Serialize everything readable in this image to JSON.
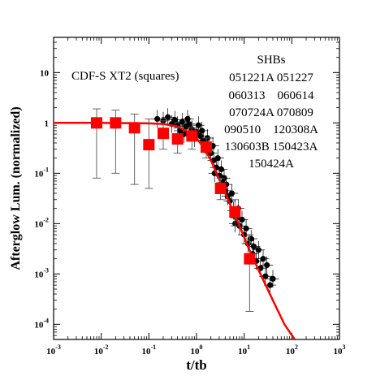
{
  "chart_data": {
    "type": "scatter",
    "scale": {
      "x": "log",
      "y": "log"
    },
    "xlim": [
      0.001,
      1000
    ],
    "ylim": [
      5e-05,
      50
    ],
    "xlabel": "t/tb",
    "ylabel": "Afterglow Lum. (normalized)",
    "x_ticks": [
      {
        "value": 0.001,
        "base": "10",
        "exp": "-3"
      },
      {
        "value": 0.01,
        "base": "10",
        "exp": "-2"
      },
      {
        "value": 0.1,
        "base": "10",
        "exp": "-1"
      },
      {
        "value": 1,
        "base": "10",
        "exp": "0"
      },
      {
        "value": 10,
        "base": "10",
        "exp": "1"
      },
      {
        "value": 100,
        "base": "10",
        "exp": "2"
      },
      {
        "value": 1000,
        "base": "10",
        "exp": "3"
      }
    ],
    "y_ticks": [
      {
        "value": 0.0001,
        "base": "10",
        "exp": "-4"
      },
      {
        "value": 0.001,
        "base": "10",
        "exp": "-3"
      },
      {
        "value": 0.01,
        "base": "10",
        "exp": "-2"
      },
      {
        "value": 0.1,
        "base": "10",
        "exp": "-1"
      },
      {
        "value": 1,
        "label": "1"
      },
      {
        "value": 10,
        "label": "10"
      }
    ],
    "annotations": {
      "xt2_label": "CDF-S XT2 (squares)",
      "shb_title": "SHBs",
      "shb_lines": [
        "051221A 051227",
        "060313    060614",
        "070724A 070809",
        "090510    120308A",
        "130603B 150423A",
        "150424A"
      ]
    },
    "series": [
      {
        "name": "CDF-S XT2 (squares)",
        "marker": "square",
        "color": "#ff0000",
        "points": [
          {
            "x": 0.008,
            "y": 1.0,
            "ylo": 0.08,
            "yhi": 1.9
          },
          {
            "x": 0.02,
            "y": 1.0,
            "ylo": 0.1,
            "yhi": 1.8
          },
          {
            "x": 0.05,
            "y": 0.8,
            "ylo": 0.06,
            "yhi": 1.5
          },
          {
            "x": 0.1,
            "y": 0.37,
            "ylo": 0.05,
            "yhi": 1.2
          },
          {
            "x": 0.2,
            "y": 0.62,
            "ylo": 0.3,
            "yhi": 1.1
          },
          {
            "x": 0.4,
            "y": 0.48,
            "ylo": 0.25,
            "yhi": 0.8
          },
          {
            "x": 0.8,
            "y": 0.55,
            "ylo": 0.3,
            "yhi": 0.8
          },
          {
            "x": 1.6,
            "y": 0.33,
            "ylo": 0.2,
            "yhi": 0.5
          },
          {
            "x": 3.2,
            "y": 0.05,
            "ylo": 0.03,
            "yhi": 0.08
          },
          {
            "x": 6.4,
            "y": 0.017,
            "ylo": 0.009,
            "yhi": 0.03
          },
          {
            "x": 13,
            "y": 0.002,
            "ylo": 0.00018,
            "yhi": 0.006
          }
        ]
      },
      {
        "name": "SHBs",
        "marker": "circle",
        "color": "#000000",
        "points": [
          {
            "x": 0.15,
            "y": 1.2
          },
          {
            "x": 0.2,
            "y": 1.1
          },
          {
            "x": 0.25,
            "y": 1.3
          },
          {
            "x": 0.3,
            "y": 0.95
          },
          {
            "x": 0.35,
            "y": 1.15
          },
          {
            "x": 0.4,
            "y": 0.9
          },
          {
            "x": 0.5,
            "y": 1.05
          },
          {
            "x": 0.6,
            "y": 0.85
          },
          {
            "x": 0.7,
            "y": 0.95
          },
          {
            "x": 0.8,
            "y": 0.75
          },
          {
            "x": 1.0,
            "y": 0.65
          },
          {
            "x": 1.2,
            "y": 0.55
          },
          {
            "x": 1.4,
            "y": 0.45
          },
          {
            "x": 1.6,
            "y": 0.38
          },
          {
            "x": 1.8,
            "y": 0.3
          },
          {
            "x": 2.0,
            "y": 0.25
          },
          {
            "x": 2.3,
            "y": 0.18
          },
          {
            "x": 2.6,
            "y": 0.13
          },
          {
            "x": 3.0,
            "y": 0.09
          },
          {
            "x": 3.5,
            "y": 0.065
          },
          {
            "x": 4.0,
            "y": 0.045
          },
          {
            "x": 4.5,
            "y": 0.035
          },
          {
            "x": 5.0,
            "y": 0.028
          },
          {
            "x": 6.0,
            "y": 0.018
          },
          {
            "x": 7.0,
            "y": 0.013
          },
          {
            "x": 8.0,
            "y": 0.009
          },
          {
            "x": 10,
            "y": 0.006
          },
          {
            "x": 12,
            "y": 0.004
          },
          {
            "x": 15,
            "y": 0.0025
          },
          {
            "x": 18,
            "y": 0.0018
          },
          {
            "x": 22,
            "y": 0.0013
          },
          {
            "x": 28,
            "y": 0.0009
          },
          {
            "x": 35,
            "y": 0.0006
          },
          {
            "x": 0.9,
            "y": 0.5
          },
          {
            "x": 1.3,
            "y": 0.7
          },
          {
            "x": 2.2,
            "y": 0.35
          },
          {
            "x": 2.8,
            "y": 0.2
          },
          {
            "x": 3.8,
            "y": 0.08
          },
          {
            "x": 5.5,
            "y": 0.04
          },
          {
            "x": 7.5,
            "y": 0.02
          },
          {
            "x": 9.0,
            "y": 0.012
          },
          {
            "x": 11,
            "y": 0.008
          },
          {
            "x": 14,
            "y": 0.005
          },
          {
            "x": 20,
            "y": 0.003
          },
          {
            "x": 25,
            "y": 0.002
          },
          {
            "x": 30,
            "y": 0.0015
          },
          {
            "x": 0.45,
            "y": 0.7
          },
          {
            "x": 0.55,
            "y": 0.6
          },
          {
            "x": 0.65,
            "y": 1.2
          },
          {
            "x": 1.1,
            "y": 0.9
          },
          {
            "x": 1.7,
            "y": 0.5
          },
          {
            "x": 2.4,
            "y": 0.1
          },
          {
            "x": 3.3,
            "y": 0.12
          },
          {
            "x": 4.2,
            "y": 0.06
          },
          {
            "x": 6.5,
            "y": 0.01
          },
          {
            "x": 16,
            "y": 0.0035
          },
          {
            "x": 40,
            "y": 0.0008
          }
        ]
      },
      {
        "name": "model",
        "type": "line",
        "color": "#ff0000",
        "points": [
          {
            "x": 0.001,
            "y": 1.0
          },
          {
            "x": 0.01,
            "y": 1.0
          },
          {
            "x": 0.1,
            "y": 0.98
          },
          {
            "x": 0.2,
            "y": 0.95
          },
          {
            "x": 0.4,
            "y": 0.85
          },
          {
            "x": 0.7,
            "y": 0.65
          },
          {
            "x": 1.0,
            "y": 0.5
          },
          {
            "x": 1.5,
            "y": 0.3
          },
          {
            "x": 2.0,
            "y": 0.18
          },
          {
            "x": 3.0,
            "y": 0.075
          },
          {
            "x": 5.0,
            "y": 0.025
          },
          {
            "x": 8.0,
            "y": 0.009
          },
          {
            "x": 12,
            "y": 0.0035
          },
          {
            "x": 20,
            "y": 0.0012
          },
          {
            "x": 40,
            "y": 0.0003
          },
          {
            "x": 70,
            "y": 0.0001
          },
          {
            "x": 115,
            "y": 5e-05
          }
        ]
      }
    ]
  }
}
